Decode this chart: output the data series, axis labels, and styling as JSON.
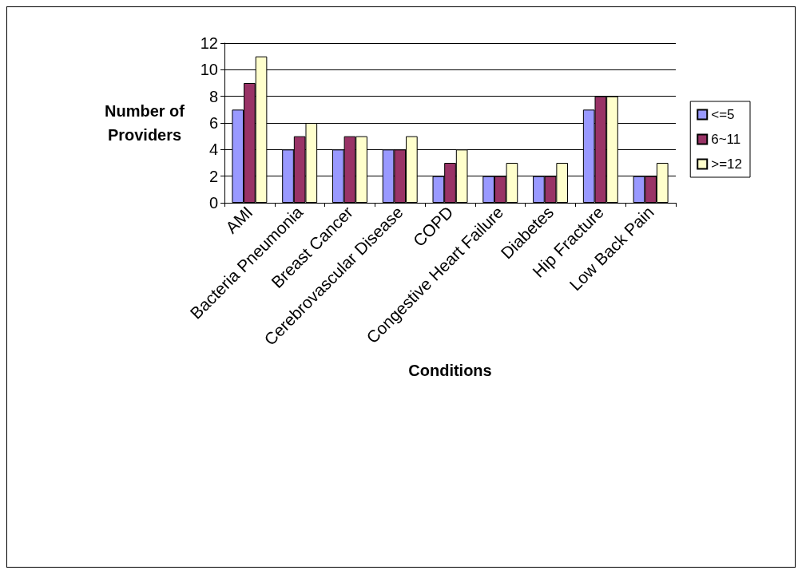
{
  "chart_data": {
    "type": "bar",
    "xlabel": "Conditions",
    "ylabel": "Number of Providers",
    "categories": [
      "AMI",
      "Bacteria Pneumonia",
      "Breast Cancer",
      "Cerebrovascular Disease",
      "COPD",
      "Congestive Heart Failure",
      "Diabetes",
      "Hip Fracture",
      "Low Back Pain"
    ],
    "series": [
      {
        "name": "<=5",
        "color": "#9999ff",
        "values": [
          7,
          4,
          4,
          4,
          2,
          2,
          2,
          7,
          2
        ]
      },
      {
        "name": "6~11",
        "color": "#993366",
        "values": [
          9,
          5,
          5,
          4,
          3,
          2,
          2,
          8,
          2
        ]
      },
      {
        "name": ">=12",
        "color": "#ffffcc",
        "values": [
          11,
          6,
          5,
          5,
          4,
          3,
          3,
          8,
          3
        ]
      }
    ],
    "ylim": [
      0,
      12
    ],
    "yticks": [
      0,
      2,
      4,
      6,
      8,
      10,
      12
    ],
    "grid": "y",
    "legend": "right"
  }
}
